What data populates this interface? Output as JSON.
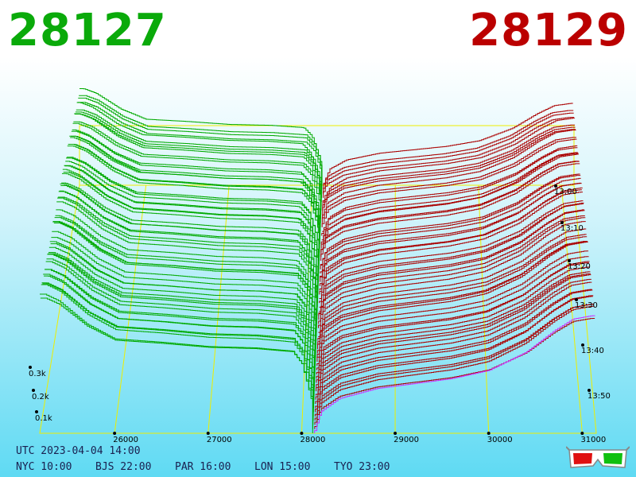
{
  "header": {
    "bid_price": "28127",
    "ask_price": "28129",
    "bid_color": "#0aaa0a",
    "ask_color": "#bb0000"
  },
  "footer": {
    "utc": "UTC 2023-04-04 14:00",
    "zones": [
      "NYC 10:00",
      "BJS 22:00",
      "PAR 16:00",
      "LON 15:00",
      "TYO 23:00"
    ]
  },
  "chart_data": {
    "type": "area",
    "description_type": "3d-order-book-depth-waterfall",
    "x_ticks": [
      "26000",
      "27000",
      "28000",
      "29000",
      "30000",
      "31000"
    ],
    "x_tick_values": [
      26000,
      27000,
      28000,
      29000,
      30000,
      31000
    ],
    "x_range": [
      25200,
      31150
    ],
    "z_ticks": [
      "0.1k",
      "0.2k",
      "0.3k"
    ],
    "z_tick_values": [
      100,
      200,
      300
    ],
    "time_ticks": [
      "13:00",
      "13:10",
      "13:20",
      "13:30",
      "13:40",
      "13:50"
    ],
    "mid_price": 28128,
    "bid_color": "#00aa00",
    "ask_color": "#aa0000",
    "current_ask_color": "#cc33ff",
    "frame_color": "#eeee00",
    "snapshots": 60,
    "bid_profile": {
      "price": [
        25250,
        25400,
        25700,
        26000,
        26500,
        27000,
        27500,
        27900,
        28000,
        28100,
        28127
      ],
      "cumulative_depth": [
        420,
        400,
        330,
        285,
        275,
        262,
        258,
        248,
        210,
        105,
        0
      ]
    },
    "ask_profile": {
      "price": [
        28129,
        28200,
        28400,
        28800,
        29200,
        29600,
        30000,
        30400,
        30700,
        30900,
        31100
      ],
      "cumulative_depth": [
        0,
        65,
        105,
        135,
        150,
        165,
        190,
        245,
        310,
        345,
        355
      ]
    }
  }
}
